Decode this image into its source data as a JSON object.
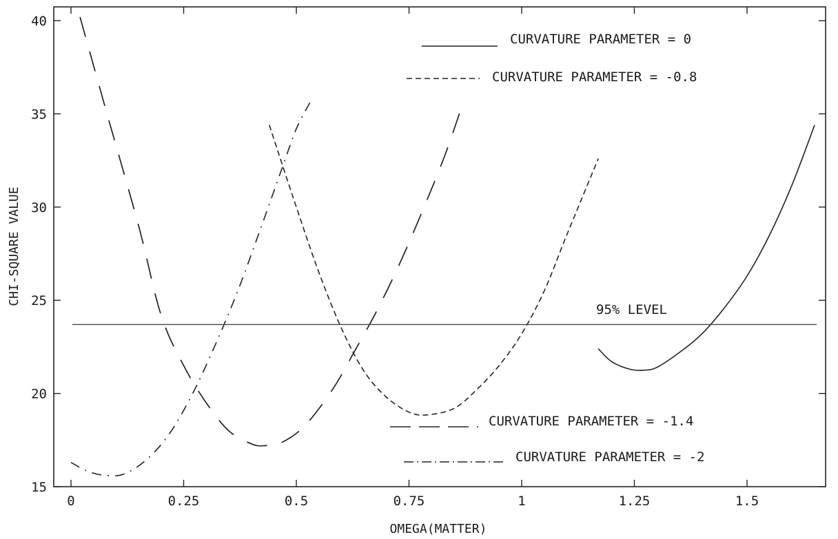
{
  "chart_data": {
    "type": "line",
    "xlabel": "OMEGA(MATTER)",
    "ylabel": "CHI-SQUARE VALUE",
    "xlim": [
      -0.07,
      1.67
    ],
    "ylim": [
      15,
      41
    ],
    "x_ticks": [
      0,
      0.25,
      0.5,
      0.75,
      1,
      1.25,
      1.5
    ],
    "x_tick_labels": [
      "0",
      "0.25",
      "0.5",
      "0.75",
      "1",
      "1.25",
      "1.5"
    ],
    "y_ticks": [
      15,
      20,
      25,
      30,
      35,
      40
    ],
    "y_tick_labels": [
      "15",
      "20",
      "25",
      "30",
      "35",
      "40"
    ],
    "grid": false,
    "legend_position": "top-right and bottom-right (split)",
    "series": [
      {
        "name": "CURVATURE PARAMETER = 0",
        "style": "solid",
        "x": [
          1.17,
          1.2,
          1.24,
          1.27,
          1.3,
          1.35,
          1.4,
          1.45,
          1.5,
          1.55,
          1.6,
          1.65
        ],
        "y": [
          22.4,
          21.7,
          21.3,
          21.25,
          21.4,
          22.2,
          23.2,
          24.6,
          26.3,
          28.5,
          31.2,
          34.4
        ]
      },
      {
        "name": "CURVATURE PARAMETER = -0.8",
        "style": "short-dash",
        "x": [
          0.44,
          0.5,
          0.55,
          0.6,
          0.65,
          0.7,
          0.75,
          0.79,
          0.85,
          0.9,
          0.95,
          1.0,
          1.05,
          1.1,
          1.17
        ],
        "y": [
          34.4,
          30.0,
          26.5,
          23.5,
          21.2,
          19.8,
          19.0,
          18.85,
          19.2,
          20.2,
          21.5,
          23.2,
          25.5,
          28.5,
          32.6
        ]
      },
      {
        "name": "CURVATURE PARAMETER = -1.4",
        "style": "long-dash",
        "x": [
          0.02,
          0.08,
          0.15,
          0.2,
          0.25,
          0.3,
          0.35,
          0.4,
          0.43,
          0.47,
          0.52,
          0.58,
          0.63,
          0.68,
          0.73,
          0.78,
          0.83,
          0.87
        ],
        "y": [
          40.2,
          35.0,
          29.0,
          24.2,
          21.5,
          19.5,
          18.0,
          17.3,
          17.2,
          17.4,
          18.3,
          20.2,
          22.3,
          24.5,
          27.0,
          29.8,
          32.8,
          35.6
        ],
        "notes": ""
      },
      {
        "name": "CURVATURE PARAMETER = -2",
        "style": "dash-dot",
        "x": [
          0.0,
          0.04,
          0.08,
          0.12,
          0.17,
          0.22,
          0.27,
          0.32,
          0.37,
          0.42,
          0.47,
          0.5,
          0.53
        ],
        "y": [
          16.3,
          15.8,
          15.6,
          15.7,
          16.5,
          17.9,
          20.0,
          22.6,
          25.5,
          28.8,
          32.2,
          34.2,
          35.6
        ]
      }
    ],
    "reference_line": {
      "y": 23.7,
      "label": "95% LEVEL"
    }
  },
  "legend": {
    "top": [
      "CURVATURE PARAMETER = 0",
      "CURVATURE PARAMETER = -0.8"
    ],
    "bottom": [
      "CURVATURE PARAMETER = -1.4",
      "CURVATURE PARAMETER = -2"
    ]
  }
}
